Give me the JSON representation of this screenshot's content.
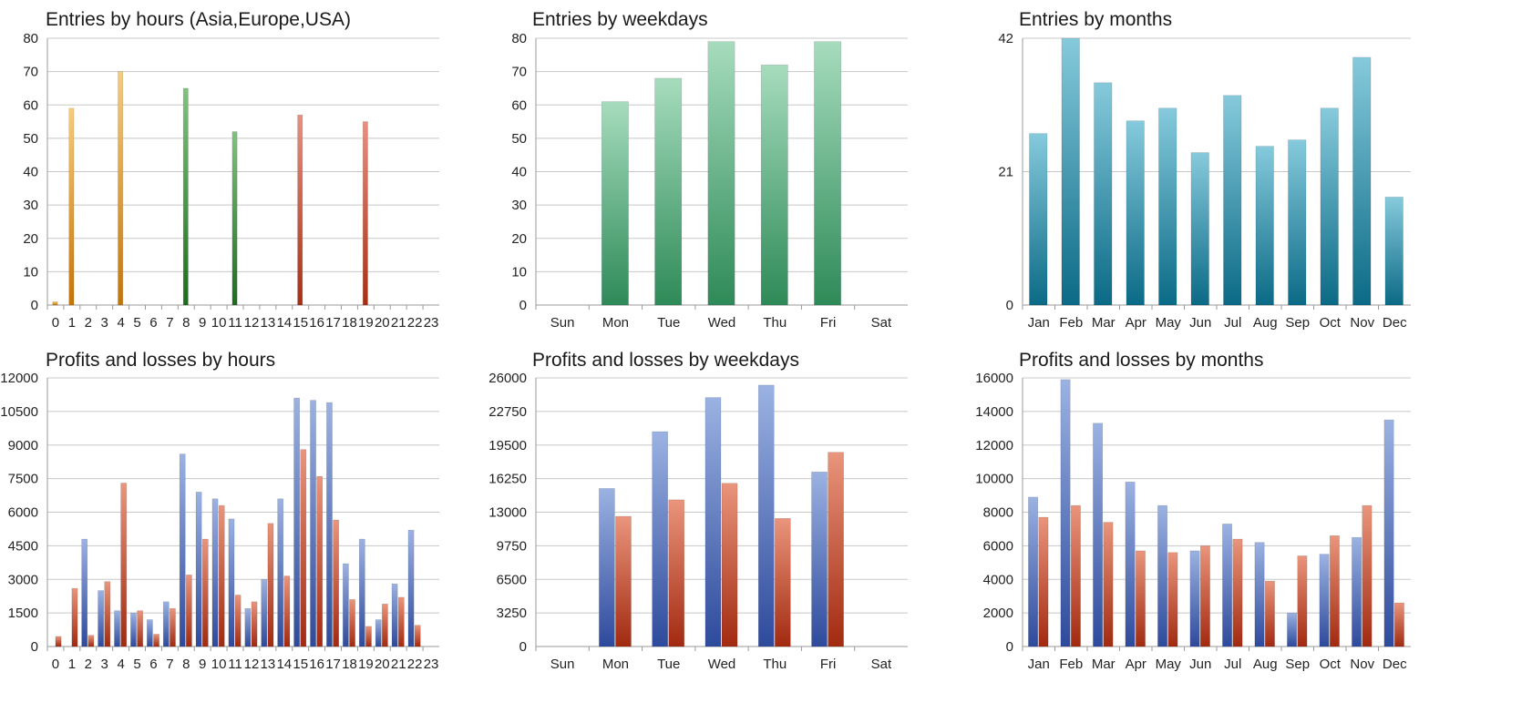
{
  "colors": {
    "asia_light": "#f5cc80",
    "asia_dark": "#c47408",
    "europe_light": "#7fc47c",
    "europe_dark": "#1a6e1a",
    "usa_light": "#e9907e",
    "usa_dark": "#a82e12",
    "weekday_light": "#a6dcbd",
    "weekday_dark": "#2e8a58",
    "month_light": "#86cadc",
    "month_dark": "#0b6a86",
    "profit_light": "#9bb2e2",
    "profit_dark": "#2e4a9c",
    "loss_light": "#e9957c",
    "loss_dark": "#a22a10"
  },
  "charts": [
    {
      "id": "entries-hours",
      "title": "Entries by hours (Asia,Europe,USA)",
      "chart_data": {
        "type": "bar",
        "categories": [
          "0",
          "1",
          "2",
          "3",
          "4",
          "5",
          "6",
          "7",
          "8",
          "9",
          "10",
          "11",
          "12",
          "13",
          "14",
          "15",
          "16",
          "17",
          "18",
          "19",
          "20",
          "21",
          "22",
          "23"
        ],
        "values": [
          1,
          59,
          0,
          0,
          70,
          0,
          0,
          0,
          65,
          0,
          0,
          52,
          0,
          0,
          0,
          57,
          0,
          0,
          0,
          55,
          0,
          0,
          0,
          0
        ],
        "ylim": [
          0,
          80
        ],
        "yticks": [
          "0",
          "10",
          "20",
          "30",
          "40",
          "50",
          "60",
          "70",
          "80"
        ],
        "bar_groups": [
          "asia",
          "asia",
          "asia",
          "asia",
          "asia",
          "asia",
          "asia",
          "asia",
          "europe",
          "europe",
          "europe",
          "europe",
          "europe",
          "europe",
          "europe",
          "usa",
          "usa",
          "usa",
          "usa",
          "usa",
          "usa",
          "usa",
          "usa",
          "usa"
        ],
        "grid": true
      }
    },
    {
      "id": "entries-weekdays",
      "title": "Entries by weekdays",
      "chart_data": {
        "type": "bar",
        "categories": [
          "Sun",
          "Mon",
          "Tue",
          "Wed",
          "Thu",
          "Fri",
          "Sat"
        ],
        "values": [
          0,
          61,
          68,
          79,
          72,
          79,
          0
        ],
        "ylim": [
          0,
          80
        ],
        "yticks": [
          "0",
          "10",
          "20",
          "30",
          "40",
          "50",
          "60",
          "70",
          "80"
        ],
        "grid": true
      }
    },
    {
      "id": "entries-months",
      "title": "Entries by months",
      "chart_data": {
        "type": "bar",
        "categories": [
          "Jan",
          "Feb",
          "Mar",
          "Apr",
          "May",
          "Jun",
          "Jul",
          "Aug",
          "Sep",
          "Oct",
          "Nov",
          "Dec"
        ],
        "values": [
          27,
          42,
          35,
          29,
          31,
          24,
          33,
          25,
          26,
          31,
          39,
          17
        ],
        "ylim": [
          0,
          42
        ],
        "yticks": [
          "0",
          "21",
          "42"
        ],
        "grid": true
      }
    },
    {
      "id": "pl-hours",
      "title": "Profits and losses by hours",
      "chart_data": {
        "type": "bar",
        "categories": [
          "0",
          "1",
          "2",
          "3",
          "4",
          "5",
          "6",
          "7",
          "8",
          "9",
          "10",
          "11",
          "12",
          "13",
          "14",
          "15",
          "16",
          "17",
          "18",
          "19",
          "20",
          "21",
          "22",
          "23"
        ],
        "series": [
          {
            "values": [
              0,
              0,
              4800,
              2500,
              1600,
              1500,
              1200,
              2000,
              8600,
              6900,
              6600,
              5700,
              1700,
              3000,
              6600,
              11100,
              11000,
              10900,
              3700,
              4800,
              1200,
              2800,
              5200,
              0
            ]
          },
          {
            "values": [
              450,
              2600,
              500,
              2900,
              7300,
              1600,
              550,
              1700,
              3200,
              4800,
              6300,
              2300,
              2000,
              5500,
              3150,
              8800,
              7600,
              5650,
              2100,
              900,
              1900,
              2200,
              950,
              0
            ]
          }
        ],
        "ylim": [
          0,
          12000
        ],
        "yticks": [
          "0",
          "1500",
          "3000",
          "4500",
          "6000",
          "7500",
          "9000",
          "10500",
          "12000"
        ],
        "grid": true
      }
    },
    {
      "id": "pl-weekdays",
      "title": "Profits and losses by weekdays",
      "chart_data": {
        "type": "bar",
        "categories": [
          "Sun",
          "Mon",
          "Tue",
          "Wed",
          "Thu",
          "Fri",
          "Sat"
        ],
        "series": [
          {
            "values": [
              0,
              15300,
              20800,
              24100,
              25300,
              16900,
              0
            ]
          },
          {
            "values": [
              0,
              12600,
              14200,
              15800,
              12400,
              18800,
              0
            ]
          }
        ],
        "ylim": [
          0,
          26000
        ],
        "yticks": [
          "0",
          "3250",
          "6500",
          "9750",
          "13000",
          "16250",
          "19500",
          "22750",
          "26000"
        ],
        "grid": true
      }
    },
    {
      "id": "pl-months",
      "title": "Profits and losses by months",
      "chart_data": {
        "type": "bar",
        "categories": [
          "Jan",
          "Feb",
          "Mar",
          "Apr",
          "May",
          "Jun",
          "Jul",
          "Aug",
          "Sep",
          "Oct",
          "Nov",
          "Dec"
        ],
        "series": [
          {
            "values": [
              8900,
              15900,
              13300,
              9800,
              8400,
              5700,
              7300,
              6200,
              2000,
              5500,
              6500,
              13500
            ]
          },
          {
            "values": [
              7700,
              8400,
              7400,
              5700,
              5600,
              6000,
              6400,
              3900,
              5400,
              6600,
              8400,
              2600
            ]
          }
        ],
        "ylim": [
          0,
          16000
        ],
        "yticks": [
          "0",
          "2000",
          "4000",
          "6000",
          "8000",
          "10000",
          "12000",
          "14000",
          "16000"
        ],
        "grid": true
      }
    }
  ]
}
